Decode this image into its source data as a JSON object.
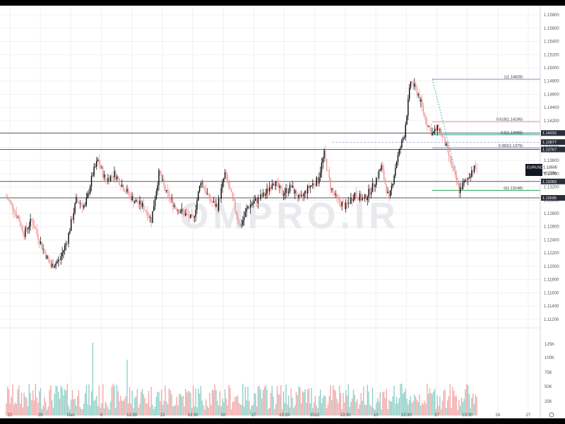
{
  "symbol": "EURUSD",
  "watermark": "OMPRO.IR",
  "last_price": {
    "label": "1.13505",
    "change": "+0.22%"
  },
  "colors": {
    "bull": "#000000",
    "bear": "#f48f8f",
    "vol_bull": "#8ecfc7",
    "vol_bear": "#f2a8a8",
    "level": "#555a63",
    "fib_top": "#8a8ec4",
    "fib_bottom": "#26a65b"
  },
  "price_axis": {
    "ticks": [
      "1.15800",
      "1.15600",
      "1.15400",
      "1.15200",
      "1.15000",
      "1.14800",
      "1.14600",
      "1.14400",
      "1.14200",
      "1.14000",
      "1.13800",
      "1.13600",
      "1.13400",
      "1.13200",
      "1.13000",
      "1.12800",
      "1.12600",
      "1.12400",
      "1.12200",
      "1.12000",
      "1.11800",
      "1.11600",
      "1.11400",
      "1.11200"
    ],
    "min": 1.1107,
    "max": 1.1594
  },
  "volume_axis": {
    "ticks": [
      "125K",
      "100K",
      "75K",
      "50K",
      "25K"
    ]
  },
  "time_axis": {
    "ticks": [
      "22",
      "29",
      "Dec",
      "6",
      "13:30",
      "13",
      "13:30",
      "20",
      "27",
      "13:30",
      "2022",
      "13:30",
      "10",
      "13:30",
      "17",
      "13:30",
      "24",
      "27"
    ]
  },
  "levels": [
    {
      "label": "1.14015",
      "value": 1.14015
    },
    {
      "label": "1.13767",
      "value": 1.13767
    },
    {
      "label": "1.13283",
      "value": 1.13283
    },
    {
      "label": "1.13035",
      "value": 1.13035
    }
  ],
  "fib_tags": [
    {
      "label": "1.13877",
      "value": 1.13877
    }
  ],
  "fibonacci": [
    {
      "label": "1(1.14828)",
      "value": 1.14828
    },
    {
      "label": "0.618(1.14186)",
      "value": 1.14186
    },
    {
      "label": "0.5(1.13988)",
      "value": 1.13988
    },
    {
      "label": "0.382(1.1379)",
      "value": 1.1379
    },
    {
      "label": "0(1.13148)",
      "value": 1.13148
    }
  ],
  "chart_data": {
    "type": "candlestick",
    "series_note": "",
    "anchors": [
      [
        0,
        1.1305
      ],
      [
        5,
        1.129
      ],
      [
        10,
        1.127
      ],
      [
        14,
        1.125
      ],
      [
        20,
        1.127
      ],
      [
        28,
        1.123
      ],
      [
        35,
        1.12
      ],
      [
        42,
        1.121
      ],
      [
        48,
        1.124
      ],
      [
        55,
        1.13
      ],
      [
        62,
        1.129
      ],
      [
        68,
        1.134
      ],
      [
        72,
        1.136
      ],
      [
        78,
        1.133
      ],
      [
        85,
        1.134
      ],
      [
        92,
        1.132
      ],
      [
        100,
        1.13
      ],
      [
        108,
        1.129
      ],
      [
        114,
        1.127
      ],
      [
        120,
        1.134
      ],
      [
        126,
        1.131
      ],
      [
        133,
        1.129
      ],
      [
        140,
        1.128
      ],
      [
        147,
        1.127
      ],
      [
        153,
        1.133
      ],
      [
        160,
        1.13
      ],
      [
        166,
        1.129
      ],
      [
        172,
        1.134
      ],
      [
        178,
        1.13
      ],
      [
        184,
        1.126
      ],
      [
        190,
        1.129
      ],
      [
        197,
        1.13
      ],
      [
        204,
        1.131
      ],
      [
        210,
        1.133
      ],
      [
        217,
        1.131
      ],
      [
        224,
        1.132
      ],
      [
        231,
        1.13
      ],
      [
        238,
        1.132
      ],
      [
        245,
        1.133
      ],
      [
        250,
        1.137
      ],
      [
        255,
        1.132
      ],
      [
        260,
        1.13
      ],
      [
        267,
        1.129
      ],
      [
        274,
        1.131
      ],
      [
        281,
        1.13
      ],
      [
        288,
        1.132
      ],
      [
        295,
        1.135
      ],
      [
        301,
        1.13
      ],
      [
        307,
        1.136
      ],
      [
        313,
        1.14
      ],
      [
        318,
        1.148
      ],
      [
        324,
        1.146
      ],
      [
        330,
        1.142
      ],
      [
        335,
        1.14
      ],
      [
        340,
        1.141
      ],
      [
        346,
        1.138
      ],
      [
        352,
        1.134
      ],
      [
        356,
        1.1315
      ],
      [
        362,
        1.133
      ],
      [
        366,
        1.1345
      ],
      [
        370,
        1.135
      ]
    ],
    "ylim": [
      1.1107,
      1.1594
    ]
  }
}
